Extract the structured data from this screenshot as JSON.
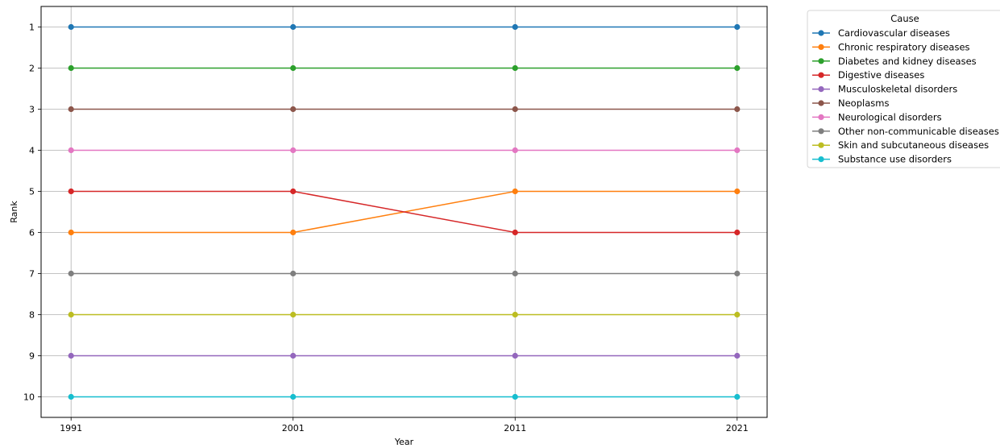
{
  "chart_data": {
    "type": "line",
    "xlabel": "Year",
    "ylabel": "Rank",
    "x": [
      1991,
      2001,
      2011,
      2021
    ],
    "x_ticks": [
      "1991",
      "2001",
      "2011",
      "2021"
    ],
    "y_ticks": [
      "1",
      "2",
      "3",
      "4",
      "5",
      "6",
      "7",
      "8",
      "9",
      "10"
    ],
    "ylim": [
      10.5,
      0.5
    ],
    "y_inverted": true,
    "grid": true,
    "legend_title": "Cause",
    "legend_position": "outside-top-right",
    "series": [
      {
        "name": "Cardiovascular diseases",
        "color": "#1f77b4",
        "values": [
          1,
          1,
          1,
          1
        ]
      },
      {
        "name": "Chronic respiratory diseases",
        "color": "#ff7f0e",
        "values": [
          6,
          6,
          5,
          5
        ]
      },
      {
        "name": "Diabetes and kidney diseases",
        "color": "#2ca02c",
        "values": [
          2,
          2,
          2,
          2
        ]
      },
      {
        "name": "Digestive diseases",
        "color": "#d62728",
        "values": [
          5,
          5,
          6,
          6
        ]
      },
      {
        "name": "Musculoskeletal disorders",
        "color": "#9467bd",
        "values": [
          9,
          9,
          9,
          9
        ]
      },
      {
        "name": "Neoplasms",
        "color": "#8c564b",
        "values": [
          3,
          3,
          3,
          3
        ]
      },
      {
        "name": "Neurological disorders",
        "color": "#e377c2",
        "values": [
          4,
          4,
          4,
          4
        ]
      },
      {
        "name": "Other non-communicable diseases",
        "color": "#7f7f7f",
        "values": [
          7,
          7,
          7,
          7
        ]
      },
      {
        "name": "Skin and subcutaneous diseases",
        "color": "#bcbd22",
        "values": [
          8,
          8,
          8,
          8
        ]
      },
      {
        "name": "Substance use disorders",
        "color": "#17becf",
        "values": [
          10,
          10,
          10,
          10
        ]
      }
    ]
  }
}
